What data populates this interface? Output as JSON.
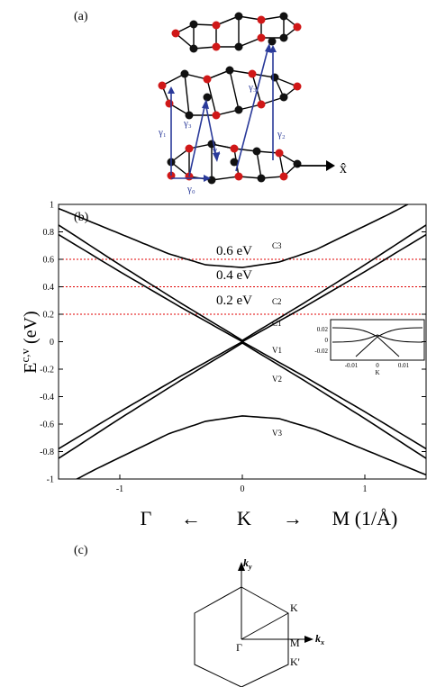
{
  "figure": {
    "panel_a_label": "(a)",
    "panel_b_label": "(b)",
    "panel_c_label": "(c)",
    "lattice": {
      "axis_label": "x̂",
      "hopping": [
        "γ₀",
        "γ₁",
        "γ₂",
        "γ₃",
        "γ₄"
      ],
      "atom_colors": {
        "A": "#d01818",
        "B": "#111111"
      },
      "arrow_color": "#2a3a9a"
    },
    "bands": {
      "ylabel_main": "E",
      "ylabel_sup": "c,v",
      "ylabel_unit": " (eV)",
      "y_ticks": [
        "1",
        "0.8",
        "0.6",
        "0.4",
        "0.2",
        "0",
        "-0.2",
        "-0.4",
        "-0.6",
        "-0.8",
        "-1"
      ],
      "x_ticks": [
        "-1",
        "0",
        "1"
      ],
      "energy_labels": [
        "0.6 eV",
        "0.4 eV",
        "0.2 eV"
      ],
      "band_names": [
        "C3",
        "C2",
        "C1",
        "V1",
        "V2",
        "V3"
      ],
      "direction": {
        "left": "Γ",
        "center": "K",
        "right": "M (1/Å)",
        "arrow_left": "←",
        "arrow_right": "→"
      },
      "inset": {
        "y_ticks": [
          "0.02",
          "0",
          "-0.02"
        ],
        "x_ticks": [
          "-0.01",
          "0",
          "0.01"
        ],
        "xlabel": "K"
      }
    },
    "brillouin": {
      "kx": "k",
      "kx_sub": "x",
      "ky": "k",
      "ky_sub": "y",
      "points": [
        "Γ",
        "M",
        "K",
        "K'"
      ]
    }
  },
  "chart_data": {
    "type": "line",
    "title": "",
    "xlabel": "Γ ← K → M (1/Å)",
    "ylabel": "E c,v (eV)",
    "xlim": [
      -1.5,
      1.5
    ],
    "ylim": [
      -1,
      1
    ],
    "grid": false,
    "reference_lines": [
      0.6,
      0.4,
      0.2
    ],
    "reference_color": "#e00000",
    "series": [
      {
        "name": "C3",
        "x": [
          -1.5,
          -1.2,
          -0.9,
          -0.6,
          -0.3,
          0.0,
          0.3,
          0.6,
          0.9,
          1.2,
          1.5
        ],
        "y": [
          0.97,
          0.86,
          0.75,
          0.64,
          0.56,
          0.54,
          0.58,
          0.67,
          0.8,
          0.93,
          1.07
        ]
      },
      {
        "name": "C2",
        "x": [
          -1.5,
          -1.0,
          -0.5,
          0.0,
          0.5,
          1.0,
          1.5
        ],
        "y": [
          0.85,
          0.56,
          0.28,
          0.01,
          0.28,
          0.56,
          0.85
        ]
      },
      {
        "name": "C1",
        "x": [
          -1.5,
          -1.0,
          -0.5,
          0.0,
          0.5,
          1.0,
          1.5
        ],
        "y": [
          0.78,
          0.51,
          0.25,
          0.0,
          0.25,
          0.51,
          0.78
        ]
      },
      {
        "name": "V1",
        "x": [
          -1.5,
          -1.0,
          -0.5,
          0.0,
          0.5,
          1.0,
          1.5
        ],
        "y": [
          -0.78,
          -0.51,
          -0.25,
          0.0,
          -0.25,
          -0.51,
          -0.78
        ]
      },
      {
        "name": "V2",
        "x": [
          -1.5,
          -1.0,
          -0.5,
          0.0,
          0.5,
          1.0,
          1.5
        ],
        "y": [
          -0.85,
          -0.56,
          -0.28,
          -0.01,
          -0.28,
          -0.56,
          -0.85
        ]
      },
      {
        "name": "V3",
        "x": [
          -1.5,
          -1.2,
          -0.9,
          -0.6,
          -0.3,
          0.0,
          0.3,
          0.6,
          0.9,
          1.2,
          1.5
        ],
        "y": [
          -1.07,
          -0.93,
          -0.8,
          -0.67,
          -0.58,
          -0.54,
          -0.56,
          -0.64,
          -0.75,
          -0.86,
          -0.97
        ]
      }
    ],
    "inset": {
      "xlim": [
        -0.02,
        0.02
      ],
      "ylim": [
        -0.025,
        0.025
      ],
      "note": "zoom near K showing small gap and crossing of the low-energy bands"
    }
  }
}
